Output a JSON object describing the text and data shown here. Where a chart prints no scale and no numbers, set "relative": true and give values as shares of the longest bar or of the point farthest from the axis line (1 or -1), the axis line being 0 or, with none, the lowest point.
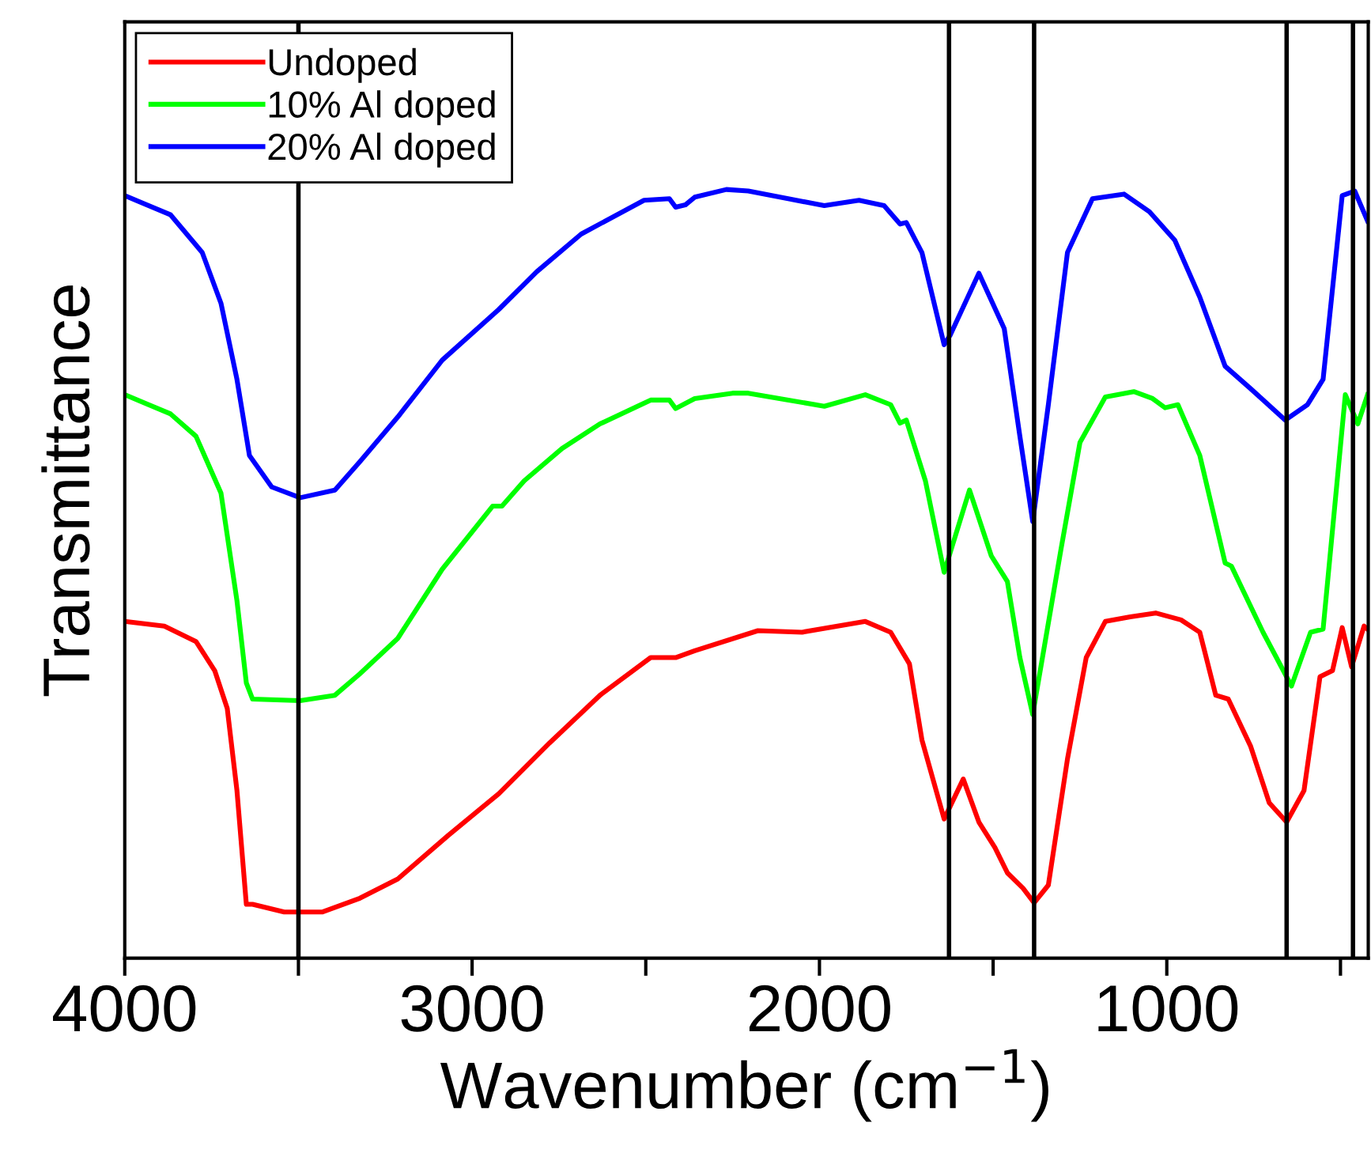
{
  "chart_data": {
    "type": "line",
    "relative": true,
    "xlabel": "Wavenumber (cm$^{−1}$)",
    "ylabel": "Transmittance",
    "xlim": [
      4000,
      420
    ],
    "xticks": [
      4000,
      {
        "value": 3500,
        "label": null
      },
      3000,
      {
        "value": 2500,
        "label": null
      },
      2000,
      {
        "value": 1500,
        "label": null
      },
      1000,
      {
        "value": 500,
        "label": null
      }
    ],
    "tick_labels": "x",
    "grid": false,
    "legend": "top left",
    "marker": "none",
    "line_style": "solid",
    "ref_lines": [
      {
        "axis": "x",
        "value": 3500,
        "color": "#000000"
      },
      {
        "axis": "x",
        "value": 1627,
        "color": "#000000"
      },
      {
        "axis": "x",
        "value": 1382,
        "color": "#000000"
      },
      {
        "axis": "x",
        "value": 655,
        "color": "#000000"
      },
      {
        "axis": "x",
        "value": 464,
        "color": "#000000"
      }
    ],
    "series": [
      {
        "name": "Undoped",
        "color": "#ff0000",
        "x": [
          4000,
          3886,
          3795,
          3741,
          3705,
          3677,
          3650,
          3632,
          3541,
          3432,
          3323,
          3214,
          3068,
          2923,
          2777,
          2632,
          2486,
          2414,
          2359,
          2177,
          2050,
          1868,
          1795,
          1741,
          1705,
          1641,
          1586,
          1541,
          1495,
          1459,
          1414,
          1382,
          1341,
          1286,
          1232,
          1177,
          1105,
          1032,
          959,
          905,
          859,
          823,
          759,
          705,
          655,
          605,
          559,
          523,
          495,
          468,
          432,
          422
        ],
        "values": [
          0.438,
          0.432,
          0.412,
          0.374,
          0.325,
          0.218,
          0.07,
          0.07,
          0.06,
          0.06,
          0.078,
          0.103,
          0.16,
          0.214,
          0.28,
          0.342,
          0.391,
          0.391,
          0.4,
          0.426,
          0.424,
          0.438,
          0.424,
          0.383,
          0.284,
          0.181,
          0.233,
          0.177,
          0.144,
          0.111,
          0.091,
          0.072,
          0.095,
          0.259,
          0.391,
          0.438,
          0.444,
          0.449,
          0.44,
          0.424,
          0.342,
          0.337,
          0.276,
          0.202,
          0.177,
          0.218,
          0.366,
          0.374,
          0.43,
          0.379,
          0.432,
          0.428
        ]
      },
      {
        "name": "10% Al doped",
        "color": "#00ff00",
        "x": [
          4000,
          3868,
          3795,
          3723,
          3677,
          3650,
          3632,
          3495,
          3395,
          3323,
          3214,
          3086,
          2941,
          2914,
          2850,
          2741,
          2632,
          2486,
          2432,
          2414,
          2359,
          2250,
          2205,
          1986,
          1868,
          1795,
          1768,
          1750,
          1695,
          1641,
          1568,
          1505,
          1459,
          1423,
          1386,
          1305,
          1250,
          1177,
          1095,
          1041,
          1005,
          968,
          905,
          832,
          814,
          723,
          641,
          586,
          550,
          486,
          450,
          422
        ],
        "values": [
          0.733,
          0.708,
          0.679,
          0.605,
          0.465,
          0.358,
          0.337,
          0.335,
          0.342,
          0.37,
          0.416,
          0.506,
          0.588,
          0.588,
          0.621,
          0.663,
          0.695,
          0.726,
          0.726,
          0.715,
          0.728,
          0.735,
          0.735,
          0.718,
          0.733,
          0.72,
          0.696,
          0.7,
          0.621,
          0.502,
          0.609,
          0.523,
          0.49,
          0.391,
          0.317,
          0.531,
          0.671,
          0.73,
          0.737,
          0.728,
          0.716,
          0.72,
          0.654,
          0.514,
          0.51,
          0.424,
          0.354,
          0.424,
          0.428,
          0.733,
          0.695,
          0.733
        ]
      },
      {
        "name": "20% Al doped",
        "color": "#0000ff",
        "x": [
          4000,
          3868,
          3777,
          3723,
          3677,
          3641,
          3577,
          3495,
          3395,
          3323,
          3214,
          3086,
          2923,
          2814,
          2686,
          2505,
          2432,
          2414,
          2386,
          2359,
          2268,
          2205,
          1986,
          1886,
          1814,
          1768,
          1750,
          1705,
          1641,
          1623,
          1541,
          1468,
          1423,
          1386,
          1341,
          1286,
          1214,
          1123,
          1050,
          977,
          905,
          832,
          759,
          659,
          595,
          550,
          495,
          459,
          422
        ],
        "values": [
          0.992,
          0.967,
          0.918,
          0.852,
          0.753,
          0.654,
          0.613,
          0.599,
          0.609,
          0.646,
          0.704,
          0.778,
          0.844,
          0.893,
          0.942,
          0.986,
          0.988,
          0.977,
          0.98,
          0.99,
          1,
          0.998,
          0.979,
          0.986,
          0.979,
          0.955,
          0.957,
          0.918,
          0.798,
          0.811,
          0.891,
          0.819,
          0.679,
          0.568,
          0.72,
          0.918,
          0.988,
          0.994,
          0.971,
          0.934,
          0.86,
          0.77,
          0.741,
          0.7,
          0.72,
          0.753,
          0.992,
          0.998,
          0.959
        ]
      }
    ]
  }
}
